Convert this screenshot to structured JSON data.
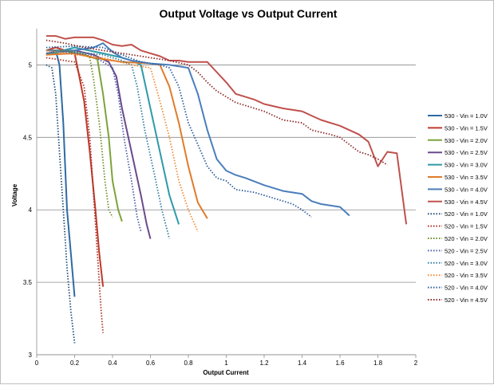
{
  "chart_data": {
    "type": "line",
    "title": "Output Voltage vs Output Current",
    "xlabel": "Output Current",
    "ylabel": "Voltage",
    "xlim": [
      0,
      2
    ],
    "ylim": [
      3,
      5.25
    ],
    "xticks": [
      0,
      0.2,
      0.4,
      0.6,
      0.8,
      1,
      1.2,
      1.4,
      1.6,
      1.8,
      2
    ],
    "xtick_labels": [
      "0",
      "0.2",
      "0.4",
      "0.6",
      "0.8",
      "1",
      "1.2",
      "1.4",
      "1.6",
      "1.8",
      "2"
    ],
    "yticks": [
      3,
      3.5,
      4,
      4.5,
      5
    ],
    "ytick_labels": [
      "3",
      "3.5",
      "4",
      "4.5",
      "5"
    ],
    "grid": "horizontal",
    "legend_position": "right",
    "series": [
      {
        "name": "530 - Vin = 1.0V",
        "color": "#2e6aa3",
        "dash": "solid",
        "points": [
          [
            0.05,
            5.07
          ],
          [
            0.1,
            5.1
          ],
          [
            0.12,
            5.0
          ],
          [
            0.14,
            4.6
          ],
          [
            0.16,
            4.0
          ],
          [
            0.18,
            3.7
          ],
          [
            0.2,
            3.4
          ]
        ]
      },
      {
        "name": "530 - Vin = 1.5V",
        "color": "#c0392b",
        "dash": "solid",
        "points": [
          [
            0.05,
            5.1
          ],
          [
            0.1,
            5.12
          ],
          [
            0.2,
            5.08
          ],
          [
            0.22,
            4.95
          ],
          [
            0.25,
            4.75
          ],
          [
            0.28,
            4.4
          ],
          [
            0.31,
            4.0
          ],
          [
            0.33,
            3.7
          ],
          [
            0.35,
            3.47
          ]
        ]
      },
      {
        "name": "530 - Vin = 2.0V",
        "color": "#7da33a",
        "dash": "solid",
        "points": [
          [
            0.05,
            5.07
          ],
          [
            0.15,
            5.1
          ],
          [
            0.25,
            5.07
          ],
          [
            0.32,
            5.04
          ],
          [
            0.35,
            4.8
          ],
          [
            0.38,
            4.5
          ],
          [
            0.4,
            4.2
          ],
          [
            0.43,
            4.0
          ],
          [
            0.45,
            3.92
          ]
        ]
      },
      {
        "name": "530 - Vin = 2.5V",
        "color": "#6b4a8c",
        "dash": "solid",
        "points": [
          [
            0.05,
            5.08
          ],
          [
            0.2,
            5.1
          ],
          [
            0.3,
            5.07
          ],
          [
            0.38,
            5.02
          ],
          [
            0.42,
            4.92
          ],
          [
            0.45,
            4.7
          ],
          [
            0.5,
            4.4
          ],
          [
            0.55,
            4.1
          ],
          [
            0.58,
            3.9
          ],
          [
            0.6,
            3.8
          ]
        ]
      },
      {
        "name": "530 - Vin = 3.0V",
        "color": "#2f9aa8",
        "dash": "solid",
        "points": [
          [
            0.05,
            5.07
          ],
          [
            0.2,
            5.12
          ],
          [
            0.35,
            5.08
          ],
          [
            0.45,
            5.05
          ],
          [
            0.5,
            5.03
          ],
          [
            0.55,
            5.0
          ],
          [
            0.6,
            4.7
          ],
          [
            0.65,
            4.4
          ],
          [
            0.7,
            4.1
          ],
          [
            0.75,
            3.9
          ]
        ]
      },
      {
        "name": "530 - Vin = 3.5V",
        "color": "#e07b2a",
        "dash": "solid",
        "points": [
          [
            0.05,
            5.07
          ],
          [
            0.2,
            5.08
          ],
          [
            0.3,
            5.05
          ],
          [
            0.45,
            5.02
          ],
          [
            0.6,
            5.01
          ],
          [
            0.65,
            5.0
          ],
          [
            0.7,
            4.85
          ],
          [
            0.75,
            4.6
          ],
          [
            0.8,
            4.3
          ],
          [
            0.85,
            4.05
          ],
          [
            0.9,
            3.94
          ]
        ]
      },
      {
        "name": "530 - Vin = 4.0V",
        "color": "#4a7ebb",
        "dash": "solid",
        "points": [
          [
            0.05,
            5.1
          ],
          [
            0.2,
            5.1
          ],
          [
            0.3,
            5.12
          ],
          [
            0.35,
            5.15
          ],
          [
            0.4,
            5.09
          ],
          [
            0.45,
            5.05
          ],
          [
            0.5,
            5.03
          ],
          [
            0.6,
            5.01
          ],
          [
            0.7,
            5.0
          ],
          [
            0.8,
            4.98
          ],
          [
            0.85,
            4.8
          ],
          [
            0.9,
            4.55
          ],
          [
            0.95,
            4.35
          ],
          [
            1.0,
            4.27
          ],
          [
            1.05,
            4.24
          ],
          [
            1.1,
            4.22
          ],
          [
            1.2,
            4.17
          ],
          [
            1.3,
            4.13
          ],
          [
            1.4,
            4.11
          ],
          [
            1.45,
            4.06
          ],
          [
            1.5,
            4.04
          ],
          [
            1.6,
            4.02
          ],
          [
            1.65,
            3.96
          ]
        ]
      },
      {
        "name": "530 - Vin = 4.5V",
        "color": "#c0504d",
        "dash": "solid",
        "points": [
          [
            0.05,
            5.2
          ],
          [
            0.1,
            5.2
          ],
          [
            0.15,
            5.18
          ],
          [
            0.2,
            5.19
          ],
          [
            0.3,
            5.19
          ],
          [
            0.35,
            5.17
          ],
          [
            0.4,
            5.14
          ],
          [
            0.45,
            5.13
          ],
          [
            0.5,
            5.14
          ],
          [
            0.55,
            5.1
          ],
          [
            0.6,
            5.08
          ],
          [
            0.65,
            5.06
          ],
          [
            0.7,
            5.03
          ],
          [
            0.75,
            5.03
          ],
          [
            0.8,
            5.02
          ],
          [
            0.85,
            5.02
          ],
          [
            0.9,
            5.02
          ],
          [
            0.95,
            4.95
          ],
          [
            1.0,
            4.88
          ],
          [
            1.05,
            4.8
          ],
          [
            1.1,
            4.78
          ],
          [
            1.15,
            4.76
          ],
          [
            1.2,
            4.73
          ],
          [
            1.3,
            4.7
          ],
          [
            1.4,
            4.68
          ],
          [
            1.45,
            4.65
          ],
          [
            1.5,
            4.62
          ],
          [
            1.6,
            4.58
          ],
          [
            1.7,
            4.52
          ],
          [
            1.75,
            4.47
          ],
          [
            1.8,
            4.3
          ],
          [
            1.85,
            4.4
          ],
          [
            1.9,
            4.39
          ],
          [
            1.95,
            3.9
          ]
        ]
      },
      {
        "name": "520 - Vin = 1.0V",
        "color": "#1f4e79",
        "dash": "dotted",
        "points": [
          [
            0.05,
            5.0
          ],
          [
            0.08,
            4.98
          ],
          [
            0.1,
            4.8
          ],
          [
            0.12,
            4.4
          ],
          [
            0.14,
            4.0
          ],
          [
            0.16,
            3.6
          ],
          [
            0.18,
            3.3
          ],
          [
            0.2,
            3.08
          ]
        ]
      },
      {
        "name": "520 - Vin = 1.5V",
        "color": "#a93226",
        "dash": "dotted",
        "points": [
          [
            0.05,
            5.05
          ],
          [
            0.1,
            5.04
          ],
          [
            0.15,
            5.03
          ],
          [
            0.2,
            5.02
          ],
          [
            0.25,
            4.85
          ],
          [
            0.28,
            4.5
          ],
          [
            0.3,
            4.1
          ],
          [
            0.32,
            3.7
          ],
          [
            0.34,
            3.3
          ],
          [
            0.35,
            3.15
          ]
        ]
      },
      {
        "name": "520 - Vin = 2.0V",
        "color": "#6b8e23",
        "dash": "dotted",
        "points": [
          [
            0.05,
            5.1
          ],
          [
            0.15,
            5.1
          ],
          [
            0.25,
            5.08
          ],
          [
            0.28,
            5.05
          ],
          [
            0.3,
            4.9
          ],
          [
            0.33,
            4.6
          ],
          [
            0.36,
            4.2
          ],
          [
            0.38,
            4.0
          ],
          [
            0.4,
            3.95
          ]
        ]
      },
      {
        "name": "520 - Vin = 2.5V",
        "color": "#4b5fa8",
        "dash": "dotted",
        "points": [
          [
            0.05,
            5.1
          ],
          [
            0.2,
            5.08
          ],
          [
            0.3,
            5.06
          ],
          [
            0.4,
            4.98
          ],
          [
            0.43,
            4.8
          ],
          [
            0.46,
            4.5
          ],
          [
            0.5,
            4.2
          ],
          [
            0.53,
            3.95
          ],
          [
            0.55,
            3.85
          ]
        ]
      },
      {
        "name": "520 - Vin = 3.0V",
        "color": "#2f7fa0",
        "dash": "dotted",
        "points": [
          [
            0.05,
            5.08
          ],
          [
            0.2,
            5.09
          ],
          [
            0.35,
            5.07
          ],
          [
            0.45,
            5.03
          ],
          [
            0.5,
            5.0
          ],
          [
            0.53,
            4.85
          ],
          [
            0.57,
            4.55
          ],
          [
            0.62,
            4.25
          ],
          [
            0.66,
            4.0
          ],
          [
            0.7,
            3.8
          ]
        ]
      },
      {
        "name": "520 - Vin = 3.5V",
        "color": "#f08c34",
        "dash": "dotted",
        "points": [
          [
            0.05,
            5.1
          ],
          [
            0.2,
            5.07
          ],
          [
            0.35,
            5.05
          ],
          [
            0.5,
            5.0
          ],
          [
            0.6,
            4.98
          ],
          [
            0.65,
            4.75
          ],
          [
            0.7,
            4.5
          ],
          [
            0.75,
            4.2
          ],
          [
            0.8,
            4.0
          ],
          [
            0.85,
            3.85
          ]
        ]
      },
      {
        "name": "520 - Vin = 4.0V",
        "color": "#2e5e9e",
        "dash": "dotted",
        "points": [
          [
            0.05,
            5.12
          ],
          [
            0.2,
            5.13
          ],
          [
            0.35,
            5.12
          ],
          [
            0.45,
            5.07
          ],
          [
            0.55,
            5.02
          ],
          [
            0.65,
            5.0
          ],
          [
            0.7,
            4.98
          ],
          [
            0.75,
            4.85
          ],
          [
            0.8,
            4.6
          ],
          [
            0.85,
            4.45
          ],
          [
            0.9,
            4.3
          ],
          [
            0.95,
            4.22
          ],
          [
            1.0,
            4.2
          ],
          [
            1.05,
            4.14
          ],
          [
            1.15,
            4.12
          ],
          [
            1.2,
            4.1
          ],
          [
            1.3,
            4.06
          ],
          [
            1.35,
            4.04
          ],
          [
            1.4,
            4.0
          ],
          [
            1.45,
            3.95
          ]
        ]
      },
      {
        "name": "520 - Vin = 4.5V",
        "color": "#8e2a2a",
        "dash": "dotted",
        "points": [
          [
            0.05,
            5.17
          ],
          [
            0.15,
            5.15
          ],
          [
            0.25,
            5.12
          ],
          [
            0.35,
            5.1
          ],
          [
            0.45,
            5.08
          ],
          [
            0.55,
            5.06
          ],
          [
            0.6,
            5.05
          ],
          [
            0.7,
            5.03
          ],
          [
            0.8,
            5.0
          ],
          [
            0.85,
            4.95
          ],
          [
            0.9,
            4.88
          ],
          [
            0.95,
            4.82
          ],
          [
            1.0,
            4.78
          ],
          [
            1.05,
            4.74
          ],
          [
            1.1,
            4.72
          ],
          [
            1.2,
            4.68
          ],
          [
            1.25,
            4.65
          ],
          [
            1.3,
            4.62
          ],
          [
            1.4,
            4.6
          ],
          [
            1.45,
            4.55
          ],
          [
            1.55,
            4.52
          ],
          [
            1.6,
            4.5
          ],
          [
            1.65,
            4.45
          ],
          [
            1.7,
            4.4
          ],
          [
            1.75,
            4.38
          ],
          [
            1.8,
            4.35
          ],
          [
            1.85,
            4.31
          ]
        ]
      }
    ]
  }
}
